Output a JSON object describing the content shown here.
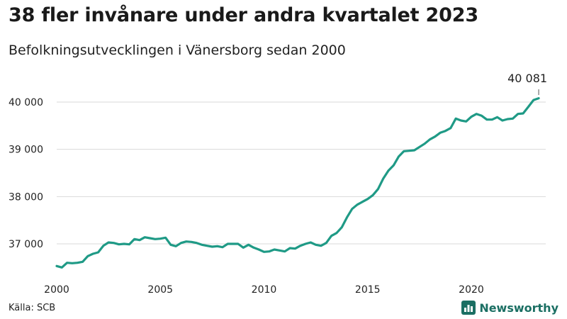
{
  "title": "38 fler invånare under andra kvartalet 2023",
  "subtitle": "Befolkningsutvecklingen i Vänersborg sedan 2000",
  "source": "Källa: SCB",
  "brand": "Newsworthy",
  "brand_icon": "bar-chart-icon",
  "line_color": "#1f9a86",
  "grid_color": "#d9d9d9",
  "chart_data": {
    "type": "line",
    "title": "38 fler invånare under andra kvartalet 2023",
    "subtitle": "Befolkningsutvecklingen i Vänersborg sedan 2000",
    "xlabel": "",
    "ylabel": "",
    "xlim": [
      2000,
      2023.5
    ],
    "ylim": [
      36400,
      40500
    ],
    "grid": true,
    "x_ticks": [
      2000,
      2005,
      2010,
      2015,
      2020
    ],
    "x_tick_labels": [
      "2000",
      "2005",
      "2010",
      "2015",
      "2020"
    ],
    "y_ticks": [
      37000,
      38000,
      39000,
      40000
    ],
    "y_tick_labels": [
      "37 000",
      "38 000",
      "39 000",
      "40 000"
    ],
    "annotation": {
      "x": 2023.25,
      "y": 40081,
      "text": "40 081"
    },
    "series": [
      {
        "values": [
          [
            2000.0,
            36530
          ],
          [
            2000.25,
            36500
          ],
          [
            2000.5,
            36600
          ],
          [
            2000.75,
            36590
          ],
          [
            2001.0,
            36600
          ],
          [
            2001.25,
            36620
          ],
          [
            2001.5,
            36740
          ],
          [
            2001.75,
            36790
          ],
          [
            2002.0,
            36820
          ],
          [
            2002.25,
            36960
          ],
          [
            2002.5,
            37030
          ],
          [
            2002.75,
            37020
          ],
          [
            2003.0,
            36990
          ],
          [
            2003.25,
            37000
          ],
          [
            2003.5,
            36990
          ],
          [
            2003.75,
            37100
          ],
          [
            2004.0,
            37080
          ],
          [
            2004.25,
            37140
          ],
          [
            2004.5,
            37120
          ],
          [
            2004.75,
            37100
          ],
          [
            2005.0,
            37110
          ],
          [
            2005.25,
            37130
          ],
          [
            2005.5,
            36980
          ],
          [
            2005.75,
            36950
          ],
          [
            2006.0,
            37020
          ],
          [
            2006.25,
            37050
          ],
          [
            2006.5,
            37040
          ],
          [
            2006.75,
            37020
          ],
          [
            2007.0,
            36980
          ],
          [
            2007.25,
            36960
          ],
          [
            2007.5,
            36940
          ],
          [
            2007.75,
            36950
          ],
          [
            2008.0,
            36930
          ],
          [
            2008.25,
            37000
          ],
          [
            2008.5,
            37000
          ],
          [
            2008.75,
            37000
          ],
          [
            2009.0,
            36920
          ],
          [
            2009.25,
            36980
          ],
          [
            2009.5,
            36920
          ],
          [
            2009.75,
            36880
          ],
          [
            2010.0,
            36830
          ],
          [
            2010.25,
            36840
          ],
          [
            2010.5,
            36880
          ],
          [
            2010.75,
            36860
          ],
          [
            2011.0,
            36840
          ],
          [
            2011.25,
            36910
          ],
          [
            2011.5,
            36900
          ],
          [
            2011.75,
            36960
          ],
          [
            2012.0,
            37000
          ],
          [
            2012.25,
            37030
          ],
          [
            2012.5,
            36980
          ],
          [
            2012.75,
            36960
          ],
          [
            2013.0,
            37020
          ],
          [
            2013.25,
            37170
          ],
          [
            2013.5,
            37230
          ],
          [
            2013.75,
            37350
          ],
          [
            2014.0,
            37560
          ],
          [
            2014.25,
            37740
          ],
          [
            2014.5,
            37830
          ],
          [
            2014.75,
            37890
          ],
          [
            2015.0,
            37950
          ],
          [
            2015.25,
            38030
          ],
          [
            2015.5,
            38160
          ],
          [
            2015.75,
            38380
          ],
          [
            2016.0,
            38550
          ],
          [
            2016.25,
            38660
          ],
          [
            2016.5,
            38850
          ],
          [
            2016.75,
            38960
          ],
          [
            2017.0,
            38970
          ],
          [
            2017.25,
            38980
          ],
          [
            2017.5,
            39050
          ],
          [
            2017.75,
            39120
          ],
          [
            2018.0,
            39210
          ],
          [
            2018.25,
            39270
          ],
          [
            2018.5,
            39350
          ],
          [
            2018.75,
            39390
          ],
          [
            2019.0,
            39450
          ],
          [
            2019.25,
            39650
          ],
          [
            2019.5,
            39610
          ],
          [
            2019.75,
            39590
          ],
          [
            2020.0,
            39690
          ],
          [
            2020.25,
            39750
          ],
          [
            2020.5,
            39710
          ],
          [
            2020.75,
            39630
          ],
          [
            2021.0,
            39630
          ],
          [
            2021.25,
            39680
          ],
          [
            2021.5,
            39610
          ],
          [
            2021.75,
            39640
          ],
          [
            2022.0,
            39650
          ],
          [
            2022.25,
            39750
          ],
          [
            2022.5,
            39760
          ],
          [
            2022.75,
            39900
          ],
          [
            2023.0,
            40043
          ],
          [
            2023.25,
            40081
          ]
        ]
      }
    ]
  }
}
